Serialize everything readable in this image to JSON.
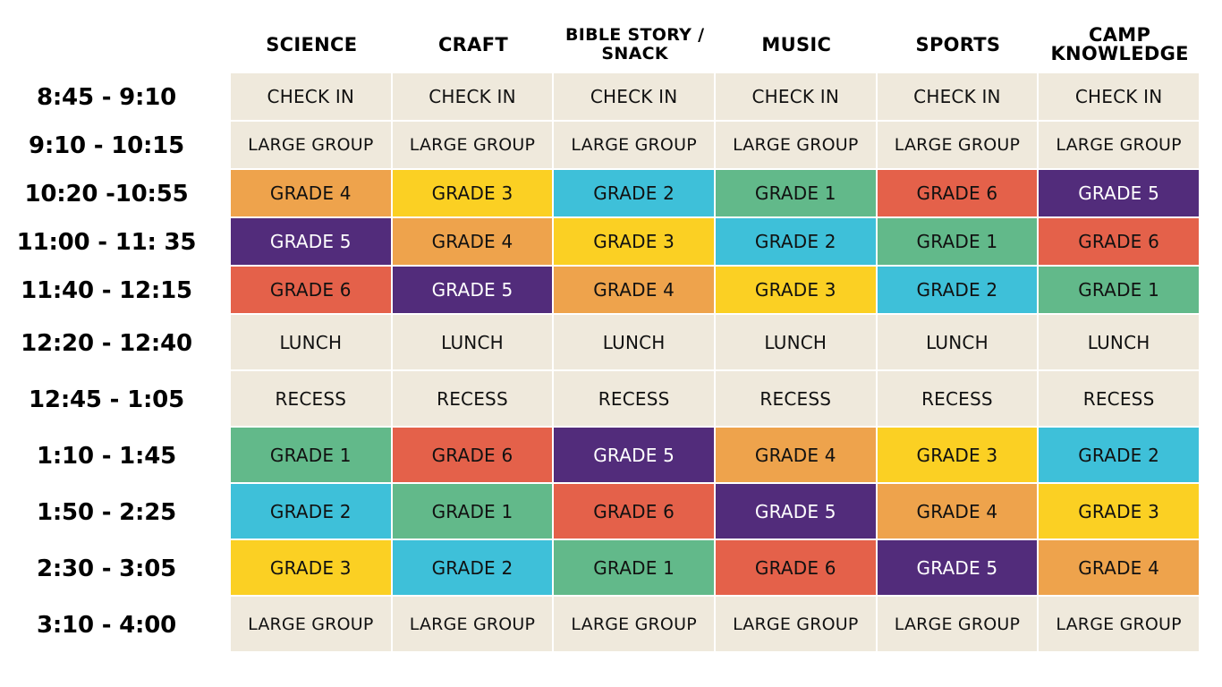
{
  "columns": [
    "SCIENCE",
    "CRAFT",
    "BIBLE STORY / SNACK",
    "MUSIC",
    "SPORTS",
    "CAMP KNOWLEDGE"
  ],
  "rows": [
    {
      "time": "8:45 - 9:10",
      "cells": [
        "CHECK IN",
        "CHECK IN",
        "CHECK IN",
        "CHECK IN",
        "CHECK IN",
        "CHECK IN"
      ]
    },
    {
      "time": "9:10 - 10:15",
      "cells": [
        "LARGE GROUP",
        "LARGE GROUP",
        "LARGE GROUP",
        "LARGE GROUP",
        "LARGE GROUP",
        "LARGE GROUP"
      ]
    },
    {
      "time": "10:20 -10:55",
      "cells": [
        "GRADE 4",
        "GRADE 3",
        "GRADE 2",
        "GRADE 1",
        "GRADE 6",
        "GRADE 5"
      ]
    },
    {
      "time": "11:00 - 11: 35",
      "cells": [
        "GRADE 5",
        "GRADE 4",
        "GRADE 3",
        "GRADE 2",
        "GRADE 1",
        "GRADE 6"
      ]
    },
    {
      "time": "11:40 - 12:15",
      "cells": [
        "GRADE 6",
        "GRADE 5",
        "GRADE 4",
        "GRADE 3",
        "GRADE 2",
        "GRADE 1"
      ]
    },
    {
      "time": "12:20 - 12:40",
      "cells": [
        "LUNCH",
        "LUNCH",
        "LUNCH",
        "LUNCH",
        "LUNCH",
        "LUNCH"
      ]
    },
    {
      "time": "12:45 - 1:05",
      "cells": [
        "RECESS",
        "RECESS",
        "RECESS",
        "RECESS",
        "RECESS",
        "RECESS"
      ]
    },
    {
      "time": "1:10 - 1:45",
      "cells": [
        "GRADE 1",
        "GRADE 6",
        "GRADE 5",
        "GRADE 4",
        "GRADE 3",
        "GRADE 2"
      ]
    },
    {
      "time": "1:50 - 2:25",
      "cells": [
        "GRADE 2",
        "GRADE 1",
        "GRADE 6",
        "GRADE 5",
        "GRADE 4",
        "GRADE 3"
      ]
    },
    {
      "time": "2:30 - 3:05",
      "cells": [
        "GRADE 3",
        "GRADE 2",
        "GRADE 1",
        "GRADE 6",
        "GRADE 5",
        "GRADE 4"
      ]
    },
    {
      "time": "3:10 - 4:00",
      "cells": [
        "LARGE GROUP",
        "LARGE GROUP",
        "LARGE GROUP",
        "LARGE GROUP",
        "LARGE GROUP",
        "LARGE GROUP"
      ]
    }
  ],
  "colors": {
    "neutral": "#efe9dc",
    "grade_1": "#62b98a",
    "grade_2": "#3ec0d9",
    "grade_3": "#fbd023",
    "grade_4": "#eea34c",
    "grade_5": "#522c7b",
    "grade_6": "#e4614a"
  }
}
